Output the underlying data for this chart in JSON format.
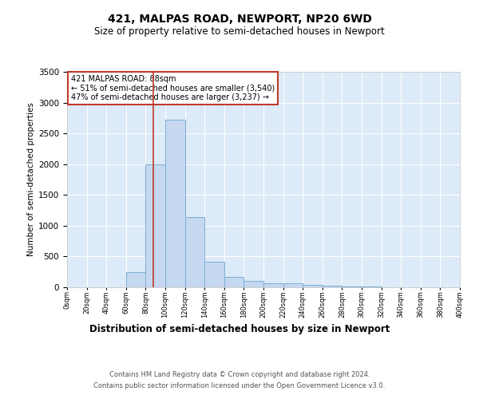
{
  "title": "421, MALPAS ROAD, NEWPORT, NP20 6WD",
  "subtitle": "Size of property relative to semi-detached houses in Newport",
  "xlabel": "Distribution of semi-detached houses by size in Newport",
  "ylabel": "Number of semi-detached properties",
  "footer_line1": "Contains HM Land Registry data © Crown copyright and database right 2024.",
  "footer_line2": "Contains public sector information licensed under the Open Government Licence v3.0.",
  "property_size": 88,
  "annotation_line1": "421 MALPAS ROAD: 88sqm",
  "annotation_line2": "← 51% of semi-detached houses are smaller (3,540)",
  "annotation_line3": "47% of semi-detached houses are larger (3,237) →",
  "bin_edges": [
    0,
    20,
    40,
    60,
    80,
    100,
    120,
    140,
    160,
    180,
    200,
    220,
    240,
    260,
    280,
    300,
    320,
    340,
    360,
    380,
    400
  ],
  "bar_heights": [
    0,
    0,
    0,
    240,
    2000,
    2720,
    1140,
    420,
    175,
    100,
    70,
    60,
    40,
    20,
    15,
    10,
    5,
    3,
    2,
    1
  ],
  "bar_color": "#c5d8f0",
  "bar_edge_color": "#7aafd4",
  "vline_color": "#c0392b",
  "annotation_box_edge_color": "#c0392b",
  "background_color": "#ffffff",
  "plot_bg_color": "#ddeaf7",
  "grid_color": "#ffffff",
  "ylim": [
    0,
    3500
  ],
  "yticks": [
    0,
    500,
    1000,
    1500,
    2000,
    2500,
    3000,
    3500
  ],
  "title_fontsize": 10,
  "subtitle_fontsize": 8.5,
  "ylabel_fontsize": 7.5,
  "xlabel_fontsize": 8.5,
  "ytick_fontsize": 7.5,
  "xtick_fontsize": 6,
  "footer_fontsize": 6,
  "annotation_fontsize": 7
}
